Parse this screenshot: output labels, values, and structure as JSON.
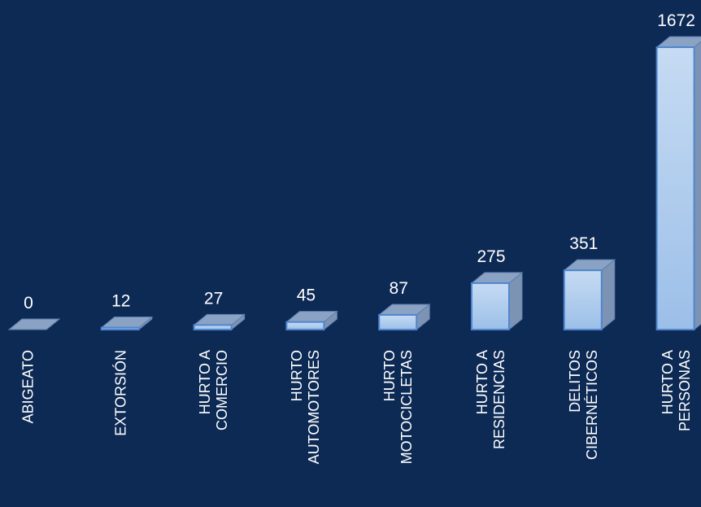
{
  "chart_data": {
    "type": "bar3d",
    "categories": [
      "ABIGEATO",
      "EXTORSIÓN",
      "HURTO A\nCOMERCIO",
      "HURTO\nAUTOMOTORES",
      "HURTO\nMOTOCICLETAS",
      "HURTO A\nRESIDENCIAS",
      "DELITOS\nCIBERNÉTICOS",
      "HURTO A\nPERSONAS"
    ],
    "values": [
      0,
      12,
      27,
      45,
      87,
      275,
      351,
      1672
    ],
    "color": "#a9c8ec"
  }
}
